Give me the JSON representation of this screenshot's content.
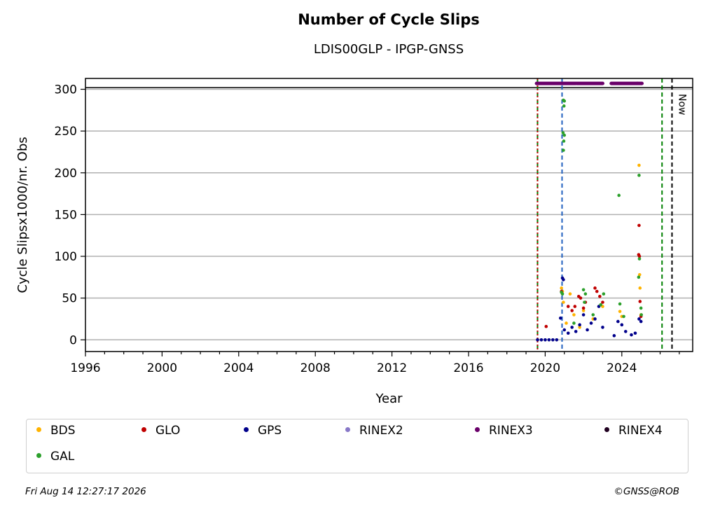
{
  "chart_data": {
    "type": "scatter",
    "title": "Number of Cycle Slips",
    "subtitle": "LDIS00GLP - IPGP-GNSS",
    "xlabel": "Year",
    "ylabel": "Cycle Slipsx1000/nr. Obs",
    "xlim": [
      1996,
      2027.7
    ],
    "ylim": [
      -14,
      313
    ],
    "x_ticks": [
      1996,
      2000,
      2004,
      2008,
      2012,
      2016,
      2020,
      2024
    ],
    "x_tick_labels": [
      "1996",
      "2000",
      "2004",
      "2008",
      "2012",
      "2016",
      "2020",
      "2024"
    ],
    "y_ticks": [
      0,
      50,
      100,
      150,
      200,
      250,
      300
    ],
    "y_tick_labels": [
      "0",
      "50",
      "100",
      "150",
      "200",
      "250",
      "300"
    ],
    "grid": "horizontal",
    "legend_position": "below",
    "series": [
      {
        "name": "BDS",
        "color": "#ffb300",
        "points": [
          [
            2020.85,
            62
          ],
          [
            2020.9,
            58
          ],
          [
            2020.95,
            45
          ],
          [
            2021.1,
            20
          ],
          [
            2021.3,
            55
          ],
          [
            2021.5,
            30
          ],
          [
            2021.8,
            15
          ],
          [
            2022.0,
            35
          ],
          [
            2022.5,
            25
          ],
          [
            2023.0,
            40
          ],
          [
            2023.9,
            34
          ],
          [
            2024.0,
            28
          ],
          [
            2024.9,
            209
          ],
          [
            2024.93,
            78
          ],
          [
            2024.95,
            62
          ],
          [
            2025.0,
            30
          ]
        ]
      },
      {
        "name": "GLO",
        "color": "#c00000",
        "points": [
          [
            2020.05,
            16
          ],
          [
            2020.85,
            58
          ],
          [
            2021.2,
            40
          ],
          [
            2021.4,
            35
          ],
          [
            2021.55,
            40
          ],
          [
            2021.75,
            52
          ],
          [
            2021.85,
            50
          ],
          [
            2022.0,
            38
          ],
          [
            2022.1,
            45
          ],
          [
            2022.6,
            62
          ],
          [
            2022.7,
            58
          ],
          [
            2022.85,
            52
          ],
          [
            2023.0,
            45
          ],
          [
            2024.9,
            137
          ],
          [
            2024.88,
            102
          ],
          [
            2024.92,
            100
          ],
          [
            2024.95,
            46
          ],
          [
            2025.0,
            28
          ]
        ]
      },
      {
        "name": "GPS",
        "color": "#00008b",
        "points": [
          [
            2019.6,
            0
          ],
          [
            2019.8,
            0
          ],
          [
            2020.0,
            0
          ],
          [
            2020.2,
            0
          ],
          [
            2020.4,
            0
          ],
          [
            2020.6,
            0
          ],
          [
            2020.8,
            26
          ],
          [
            2020.9,
            74
          ],
          [
            2020.95,
            72
          ],
          [
            2021.0,
            12
          ],
          [
            2021.2,
            8
          ],
          [
            2021.4,
            15
          ],
          [
            2021.6,
            10
          ],
          [
            2021.8,
            18
          ],
          [
            2022.0,
            30
          ],
          [
            2022.2,
            12
          ],
          [
            2022.4,
            20
          ],
          [
            2022.6,
            25
          ],
          [
            2022.8,
            40
          ],
          [
            2023.0,
            15
          ],
          [
            2023.6,
            5
          ],
          [
            2023.8,
            22
          ],
          [
            2024.0,
            18
          ],
          [
            2024.2,
            10
          ],
          [
            2024.5,
            6
          ],
          [
            2024.7,
            8
          ],
          [
            2024.9,
            25
          ],
          [
            2025.0,
            22
          ]
        ]
      },
      {
        "name": "RINEX2",
        "color": "#8878c8",
        "points": []
      },
      {
        "name": "RINEX3",
        "color": "#6a006a",
        "points": []
      },
      {
        "name": "RINEX4",
        "color": "#200020",
        "points": []
      },
      {
        "name": "GAL",
        "color": "#2ca02c",
        "points": [
          [
            2020.95,
            287
          ],
          [
            2021.0,
            286
          ],
          [
            2020.98,
            280
          ],
          [
            2020.93,
            248
          ],
          [
            2021.0,
            245
          ],
          [
            2020.97,
            238
          ],
          [
            2020.95,
            227
          ],
          [
            2020.85,
            57
          ],
          [
            2020.9,
            55
          ],
          [
            2021.5,
            20
          ],
          [
            2022.0,
            60
          ],
          [
            2022.1,
            55
          ],
          [
            2022.05,
            45
          ],
          [
            2022.5,
            30
          ],
          [
            2022.9,
            42
          ],
          [
            2023.05,
            55
          ],
          [
            2023.85,
            173
          ],
          [
            2023.9,
            43
          ],
          [
            2024.1,
            28
          ],
          [
            2024.9,
            197
          ],
          [
            2024.92,
            97
          ],
          [
            2024.88,
            75
          ],
          [
            2025.0,
            38
          ],
          [
            2025.02,
            30
          ]
        ]
      }
    ],
    "rinex3_availability": [
      [
        2019.55,
        2021.6
      ],
      [
        2021.65,
        2023.0
      ],
      [
        2023.45,
        2024.8
      ],
      [
        2024.82,
        2025.05
      ]
    ],
    "availability_level": 307,
    "reference_lines": [
      {
        "x": 2019.6,
        "color": "#008000",
        "style": "dashed"
      },
      {
        "x": 2019.6,
        "color": "#c00000",
        "style": "dotted"
      },
      {
        "x": 2020.88,
        "color": "#1f5fbf",
        "style": "dashed"
      },
      {
        "x": 2026.1,
        "color": "#008000",
        "style": "dashed"
      },
      {
        "x": 2026.62,
        "color": "#000000",
        "style": "dashed",
        "label": "Now"
      }
    ],
    "hline": 302
  },
  "legend": {
    "items": [
      {
        "label": "BDS",
        "color": "#ffb300"
      },
      {
        "label": "GLO",
        "color": "#c00000"
      },
      {
        "label": "GPS",
        "color": "#00008b"
      },
      {
        "label": "RINEX2",
        "color": "#8878c8"
      },
      {
        "label": "RINEX3",
        "color": "#6a006a"
      },
      {
        "label": "RINEX4",
        "color": "#200020"
      },
      {
        "label": "GAL",
        "color": "#2ca02c"
      }
    ]
  },
  "footer": {
    "timestamp": "Fri Aug 14 12:27:17 2026",
    "copyright": "©GNSS@ROB"
  }
}
